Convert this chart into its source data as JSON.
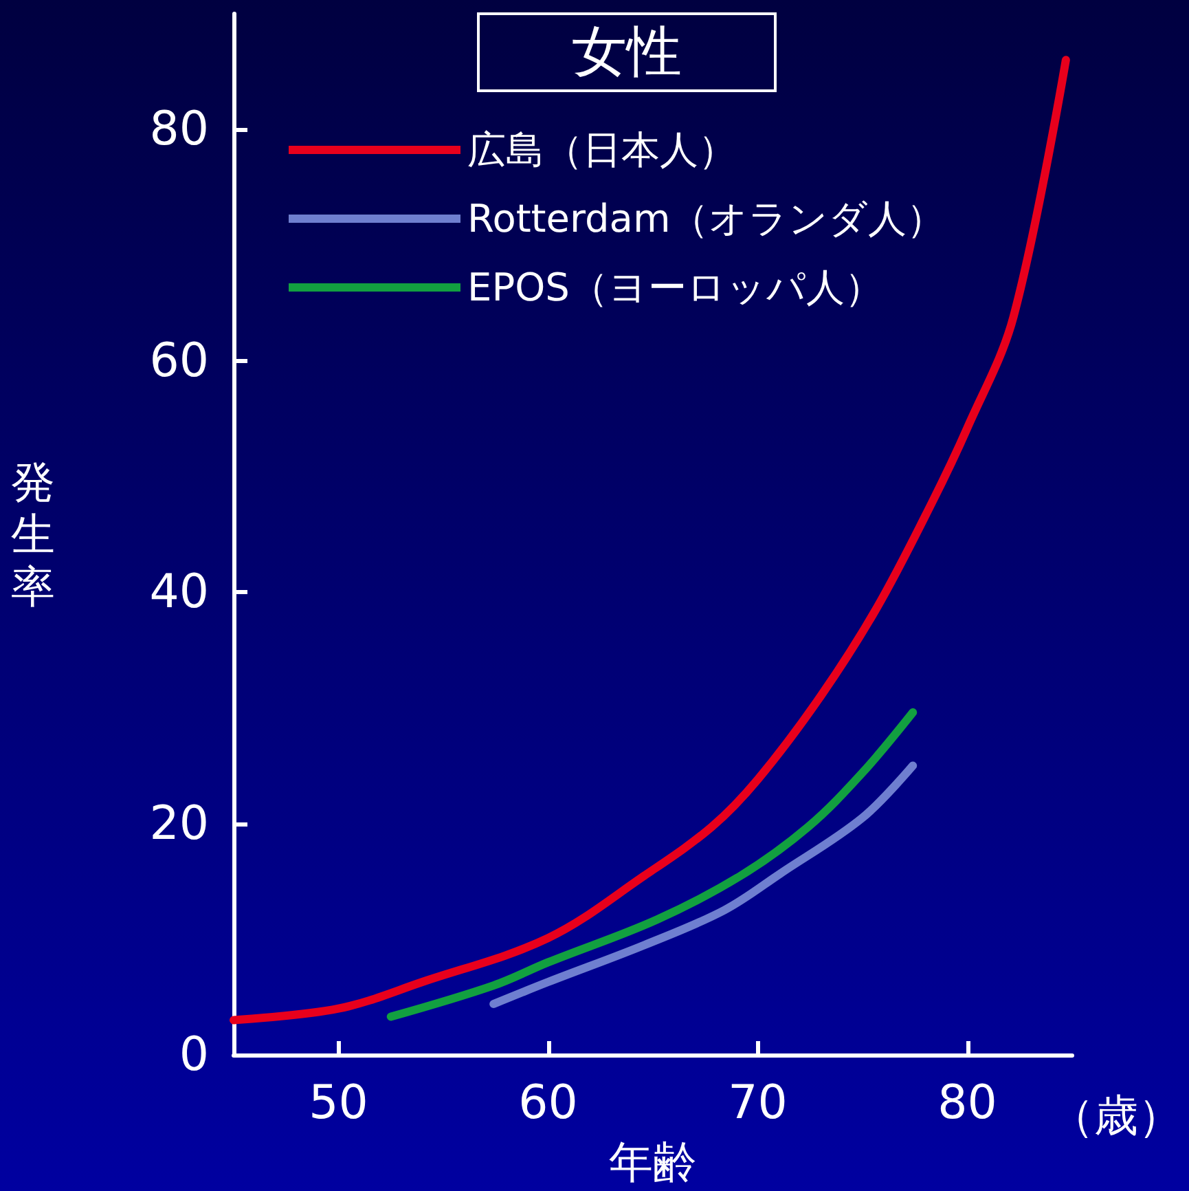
{
  "chart_data": {
    "type": "line",
    "title": "女性",
    "xlabel": "年齢",
    "ylabel": "発生率",
    "annotations": [
      "（歳）"
    ],
    "xlim": [
      45,
      85
    ],
    "xticks": [
      50,
      60,
      70,
      80
    ],
    "ylim": [
      0,
      90
    ],
    "yticks": [
      0,
      20,
      40,
      60,
      80
    ],
    "grid": false,
    "legend": "top",
    "marker": "none",
    "line_style": "solid",
    "series": [
      {
        "name": "広島（日本人）",
        "color": "#e8001c",
        "x": [
          45,
          50,
          54,
          60,
          64.6,
          67.8,
          70,
          73,
          75.7,
          78.3,
          80,
          82.2,
          84.7
        ],
        "values": [
          3.0,
          4.0,
          6.3,
          10.1,
          15.5,
          19.7,
          23.8,
          31,
          38.7,
          47.7,
          54.2,
          63.8,
          86
        ]
      },
      {
        "name": "Rotterdam（オランダ人）",
        "color": "#6f7fd0",
        "x": [
          57.4,
          60,
          64.6,
          68.4,
          71.1,
          75,
          77.4
        ],
        "values": [
          4.4,
          6.3,
          9.5,
          12.5,
          15.7,
          20.5,
          25.0
        ]
      },
      {
        "name": "EPOS（ヨーロッパ人）",
        "color": "#12a040",
        "x": [
          52.5,
          57.4,
          60,
          65.2,
          69.2,
          72.4,
          75,
          77.4
        ],
        "values": [
          3.3,
          6.0,
          8.0,
          11.7,
          15.5,
          19.7,
          24.4,
          29.6
        ]
      }
    ]
  }
}
